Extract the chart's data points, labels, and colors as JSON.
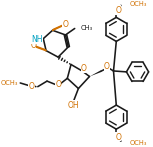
{
  "bg": "#ffffff",
  "bc": "#1a1a1a",
  "oc": "#d07000",
  "nc": "#00a0c0",
  "lw": 1.15,
  "fs": 5.5,
  "fss": 4.8
}
